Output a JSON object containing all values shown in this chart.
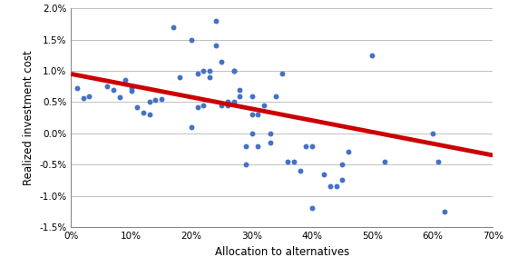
{
  "scatter_x": [
    0.01,
    0.02,
    0.03,
    0.06,
    0.07,
    0.08,
    0.09,
    0.1,
    0.1,
    0.11,
    0.12,
    0.13,
    0.13,
    0.14,
    0.15,
    0.17,
    0.18,
    0.2,
    0.2,
    0.21,
    0.21,
    0.22,
    0.22,
    0.23,
    0.23,
    0.24,
    0.24,
    0.25,
    0.25,
    0.26,
    0.26,
    0.27,
    0.27,
    0.27,
    0.28,
    0.28,
    0.29,
    0.29,
    0.3,
    0.3,
    0.3,
    0.31,
    0.31,
    0.32,
    0.33,
    0.33,
    0.34,
    0.35,
    0.36,
    0.37,
    0.38,
    0.39,
    0.4,
    0.4,
    0.42,
    0.43,
    0.44,
    0.45,
    0.45,
    0.46,
    0.5,
    0.52,
    0.6,
    0.61,
    0.62
  ],
  "scatter_y": [
    0.0072,
    0.0057,
    0.006,
    0.0075,
    0.007,
    0.0058,
    0.0085,
    0.0073,
    0.0068,
    0.0042,
    0.0033,
    0.003,
    0.005,
    0.0053,
    0.0055,
    0.017,
    0.009,
    0.015,
    0.001,
    0.0042,
    0.0095,
    0.01,
    0.0045,
    0.01,
    0.009,
    0.018,
    0.014,
    0.0045,
    0.0115,
    0.0045,
    0.005,
    0.005,
    0.01,
    0.01,
    0.006,
    0.007,
    -0.002,
    -0.005,
    0.003,
    0.0,
    0.006,
    -0.002,
    0.003,
    0.0045,
    -0.0015,
    0.0,
    0.006,
    0.0095,
    -0.0045,
    -0.0045,
    -0.006,
    -0.002,
    -0.012,
    -0.002,
    -0.0065,
    -0.0085,
    -0.0085,
    -0.005,
    -0.0075,
    -0.003,
    0.0125,
    -0.0045,
    0.0,
    -0.0045,
    -0.0125
  ],
  "trend_x": [
    0.0,
    0.7
  ],
  "trend_y": [
    0.0095,
    -0.0035
  ],
  "dot_color": "#4472C4",
  "line_color": "#CC0000",
  "xlabel": "Allocation to alternatives",
  "ylabel": "Realized investment cost",
  "xlim": [
    0.0,
    0.7
  ],
  "ylim": [
    -0.015,
    0.02
  ],
  "xticks": [
    0.0,
    0.1,
    0.2,
    0.3,
    0.4,
    0.5,
    0.6,
    0.7
  ],
  "yticks": [
    -0.015,
    -0.01,
    -0.005,
    0.0,
    0.005,
    0.01,
    0.015,
    0.02
  ],
  "grid_color": "#C0C0C0",
  "bg_color": "#FFFFFF",
  "dot_size": 18,
  "line_width": 3.5,
  "tick_fontsize": 7.5,
  "label_fontsize": 8.5
}
